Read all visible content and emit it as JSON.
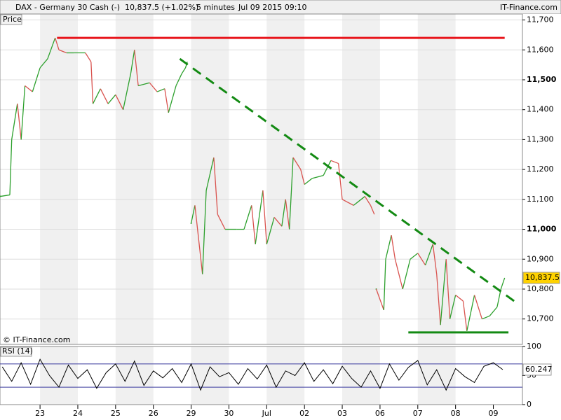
{
  "header": {
    "symbol": "DAX - Germany 30 Cash (-)",
    "quote": "10,837.5 (+1.02%)",
    "interval": "5 minutes",
    "datetime": "Jul 09 2015 09:10",
    "brand": "IT-Finance.com"
  },
  "chart_data": [
    {
      "type": "line",
      "title": "Price",
      "watermark": "© IT-Finance.com",
      "up_color": "#2ca02c",
      "down_color": "#d9534f",
      "x": [
        -1.05,
        -0.8,
        -0.75,
        -0.6,
        -0.5,
        -0.4,
        -0.2,
        0,
        0.2,
        0.4,
        0.5,
        0.7,
        0.9,
        1.2,
        1.35,
        1.4,
        1.6,
        1.8,
        2.0,
        2.2,
        2.4,
        2.5,
        2.6,
        2.9,
        3.1,
        3.3,
        3.4,
        3.6,
        3.75,
        3.85,
        3.9,
        3.95,
        4.0,
        4.1,
        4.3,
        4.4,
        4.6,
        4.7,
        4.9,
        5.2,
        5.4,
        5.6,
        5.7,
        5.9,
        6.0,
        6.2,
        6.4,
        6.5,
        6.6,
        6.7,
        6.9,
        7.0,
        7.2,
        7.5,
        7.7,
        7.9,
        8.0,
        8.3,
        8.6,
        8.75,
        8.85,
        8.88,
        8.9,
        9.1,
        9.15,
        9.3,
        9.4,
        9.6,
        9.8,
        10.0,
        10.2,
        10.4,
        10.5,
        10.6,
        10.75,
        10.85,
        11.0,
        11.2,
        11.3,
        11.5,
        11.7,
        11.9,
        12.1,
        12.2,
        12.3
      ],
      "values": [
        11110,
        11115,
        11300,
        11420,
        11300,
        11480,
        11460,
        11540,
        11570,
        11640,
        11600,
        11590,
        11590,
        11590,
        11560,
        11420,
        11470,
        11420,
        11450,
        11400,
        11520,
        11600,
        11480,
        11490,
        11460,
        11470,
        11390,
        11480,
        11520,
        11540,
        11560,
        null,
        11020,
        11080,
        10850,
        11130,
        11240,
        11050,
        11000,
        11000,
        11000,
        11080,
        10950,
        11130,
        10950,
        11040,
        11010,
        11100,
        11000,
        11240,
        11200,
        11150,
        11170,
        11180,
        11230,
        11220,
        11100,
        11080,
        11110,
        11080,
        11050,
        null,
        10800,
        10730,
        10900,
        10980,
        10900,
        10800,
        10900,
        10920,
        10880,
        10950,
        10850,
        10680,
        10900,
        10700,
        10780,
        10760,
        10660,
        10780,
        10700,
        10710,
        10740,
        10800,
        10837.5
      ],
      "ylim": [
        10615,
        11720
      ],
      "yticks": [
        {
          "value": 10700,
          "label": "10,700"
        },
        {
          "value": 10800,
          "label": "10,800"
        },
        {
          "value": 10900,
          "label": "10,900"
        },
        {
          "value": 11000,
          "label": "11,000"
        },
        {
          "value": 11100,
          "label": "11,100"
        },
        {
          "value": 11200,
          "label": "11,200"
        },
        {
          "value": 11300,
          "label": "11,300"
        },
        {
          "value": 11400,
          "label": "11,400"
        },
        {
          "value": 11500,
          "label": "11,500"
        },
        {
          "value": 11600,
          "label": "11,600"
        },
        {
          "value": 11700,
          "label": "11,700"
        }
      ],
      "last": {
        "value": 10837.5,
        "label": "10,837.5"
      },
      "annotations": [
        {
          "x": [
            0.45,
            12.3
          ],
          "y": [
            11640,
            11640
          ],
          "color": "#e8151b",
          "dashed": false
        },
        {
          "x": [
            3.7,
            12.55
          ],
          "y": [
            11570,
            10760
          ],
          "color": "#138a13",
          "dashed": true
        },
        {
          "x": [
            9.75,
            12.4
          ],
          "y": [
            10655,
            10655
          ],
          "color": "#138a13",
          "dashed": false
        }
      ],
      "grid": true
    },
    {
      "type": "line",
      "title": "RSI (14)",
      "color": "#000000",
      "x": [
        -1,
        -0.75,
        -0.5,
        -0.25,
        0,
        0.25,
        0.5,
        0.75,
        1,
        1.25,
        1.5,
        1.75,
        2,
        2.25,
        2.5,
        2.75,
        3,
        3.25,
        3.5,
        3.75,
        4,
        4.25,
        4.5,
        4.75,
        5,
        5.25,
        5.5,
        5.75,
        6,
        6.25,
        6.5,
        6.75,
        7,
        7.25,
        7.5,
        7.75,
        8,
        8.25,
        8.5,
        8.75,
        9,
        9.25,
        9.5,
        9.75,
        10,
        10.25,
        10.5,
        10.75,
        11,
        11.25,
        11.5,
        11.75,
        12,
        12.25
      ],
      "values": [
        65,
        40,
        72,
        35,
        78,
        50,
        30,
        68,
        45,
        60,
        28,
        55,
        70,
        40,
        75,
        33,
        58,
        46,
        62,
        38,
        70,
        25,
        65,
        48,
        55,
        35,
        62,
        44,
        68,
        30,
        58,
        50,
        72,
        40,
        60,
        36,
        66,
        45,
        30,
        58,
        28,
        70,
        42,
        64,
        76,
        34,
        60,
        25,
        62,
        48,
        38,
        66,
        72,
        60.247
      ],
      "ylim": [
        0,
        100
      ],
      "yticks": [
        0,
        50,
        100
      ],
      "levels": [
        30,
        70
      ],
      "level_color": "#3b3b9e",
      "last": 60.247,
      "xlim": [
        -1.06,
        12.77
      ],
      "xticks": [
        {
          "value": 0,
          "label": "23"
        },
        {
          "value": 1,
          "label": "24"
        },
        {
          "value": 2,
          "label": "25"
        },
        {
          "value": 3,
          "label": "26"
        },
        {
          "value": 4,
          "label": "29"
        },
        {
          "value": 5,
          "label": "30"
        },
        {
          "value": 6,
          "label": "Jul"
        },
        {
          "value": 7,
          "label": "02"
        },
        {
          "value": 8,
          "label": "03"
        },
        {
          "value": 9,
          "label": "06"
        },
        {
          "value": 10,
          "label": "07"
        },
        {
          "value": 11,
          "label": "08"
        },
        {
          "value": 12,
          "label": "09"
        }
      ]
    }
  ]
}
